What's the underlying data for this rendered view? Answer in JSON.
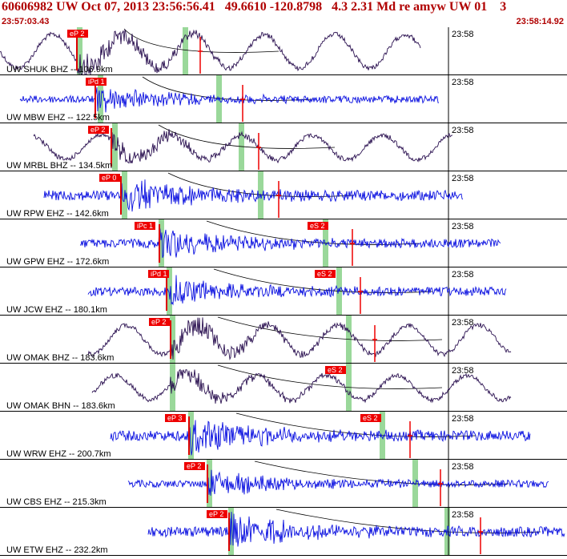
{
  "header": {
    "title": "60606982 UW Oct 07, 2013 23:56:56.41   49.6610 -120.8798   4.3 2.31 Md re amyw UW 01    3",
    "time_start": "23:57:03.43",
    "time_end": "23:58:14.92"
  },
  "colors": {
    "bhz_trace": "#2a1050",
    "ehz_trace": "#0a10e0",
    "pick_box": "#ee0000",
    "window": "#9ad89a",
    "minute_line": "#000000"
  },
  "traces": [
    {
      "label": "UW SHUK BHZ -- 106.9km",
      "minute": "23:58",
      "type": "bhz",
      "pick": "eP 2",
      "s_pick": ""
    },
    {
      "label": "UW MBW EHZ -- 122.5km",
      "minute": "23:58",
      "type": "ehz",
      "pick": "iPd 1",
      "s_pick": ""
    },
    {
      "label": "UW MRBL BHZ -- 134.5km",
      "minute": "23:58",
      "type": "bhz",
      "pick": "eP 2",
      "s_pick": ""
    },
    {
      "label": "UW RPW EHZ -- 142.6km",
      "minute": "23:58",
      "type": "ehz",
      "pick": "eP 0",
      "s_pick": ""
    },
    {
      "label": "UW GPW EHZ -- 172.6km",
      "minute": "23:58",
      "type": "ehz",
      "pick": "iPc 1",
      "s_pick": "eS 2"
    },
    {
      "label": "UW JCW EHZ -- 180.1km",
      "minute": "23:58",
      "type": "ehz",
      "pick": "iPd 1",
      "s_pick": "eS 2"
    },
    {
      "label": "UW OMAK BHZ -- 183.6km",
      "minute": "23:58",
      "type": "bhz",
      "pick": "eP 2",
      "s_pick": ""
    },
    {
      "label": "UW OMAK BHN -- 183.6km",
      "minute": "23:58",
      "type": "bhz",
      "pick": "",
      "s_pick": "eS 2"
    },
    {
      "label": "UW WRW EHZ -- 200.7km",
      "minute": "23:58",
      "type": "ehz",
      "pick": "eP 3",
      "s_pick": "eS 2"
    },
    {
      "label": "UW CBS EHZ -- 215.3km",
      "minute": "23:58",
      "type": "ehz",
      "pick": "eP 2",
      "s_pick": ""
    },
    {
      "label": "UW ETW EHZ -- 232.2km",
      "minute": "23:58",
      "type": "ehz",
      "pick": "eP 2",
      "s_pick": ""
    }
  ]
}
